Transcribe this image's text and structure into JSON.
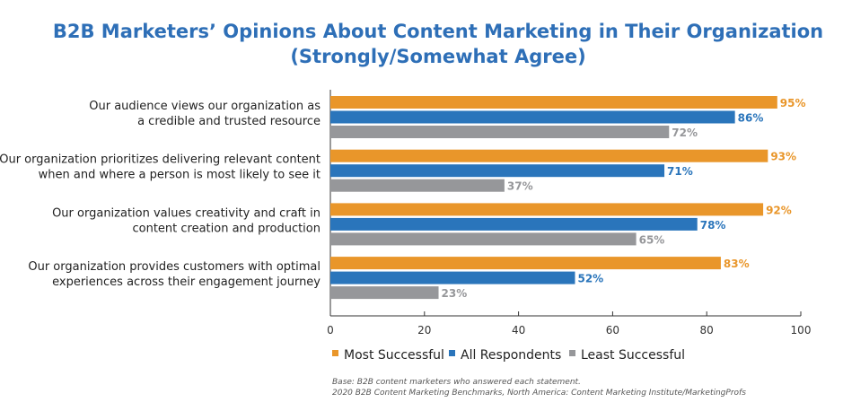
{
  "chart_data": {
    "type": "bar",
    "orientation": "horizontal",
    "title": "B2B Marketers’ Opinions About Content Marketing in Their Organization",
    "subtitle": "(Strongly/Somewhat Agree)",
    "categories": [
      [
        "Our audience views our organization as",
        "a credible and trusted resource"
      ],
      [
        "Our organization prioritizes delivering relevant content",
        "when and where a person is most likely to see it"
      ],
      [
        "Our organization values creativity and craft in",
        "content creation and production"
      ],
      [
        "Our organization provides customers with optimal",
        "experiences across their engagement journey"
      ]
    ],
    "series": [
      {
        "name": "Most Successful",
        "color": "#E9962A",
        "values": [
          95,
          93,
          92,
          83
        ]
      },
      {
        "name": "All Respondents",
        "color": "#2A75BB",
        "values": [
          86,
          71,
          78,
          52
        ]
      },
      {
        "name": "Least Successful",
        "color": "#96979A",
        "values": [
          72,
          37,
          65,
          23
        ]
      }
    ],
    "value_suffix": "%",
    "xlim": [
      0,
      100
    ],
    "xticks": [
      0,
      20,
      40,
      60,
      80,
      100
    ],
    "grid": false,
    "legend_placement": "bottom",
    "footnotes": [
      "Base: B2B content marketers who answered each statement.",
      "2020 B2B Content Marketing Benchmarks, North America: Content Marketing Institute/MarketingProfs"
    ]
  }
}
